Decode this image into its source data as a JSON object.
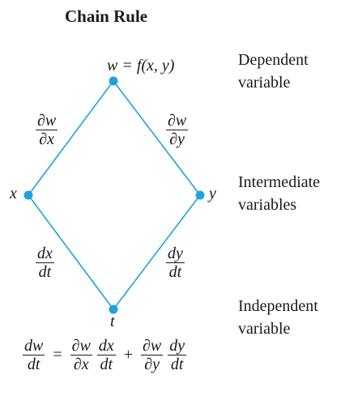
{
  "title": "Chain Rule",
  "nodes": {
    "w": "w = f(x, y)",
    "x": "x",
    "y": "y",
    "t": "t"
  },
  "edges": {
    "dw_dx": {
      "num": "∂w",
      "den": "∂x"
    },
    "dw_dy": {
      "num": "∂w",
      "den": "∂y"
    },
    "dx_dt": {
      "num": "dx",
      "den": "dt"
    },
    "dy_dt": {
      "num": "dy",
      "den": "dt"
    }
  },
  "side_labels": {
    "dependent": [
      "Dependent",
      "variable"
    ],
    "intermediate": [
      "Intermediate",
      "variables"
    ],
    "independent": [
      "Independent",
      "variable"
    ]
  },
  "equation": {
    "lhs": {
      "num": "dw",
      "den": "dt"
    },
    "equals": "=",
    "term1": [
      {
        "num": "∂w",
        "den": "∂x"
      },
      {
        "num": "dx",
        "den": "dt"
      }
    ],
    "plus": "+",
    "term2": [
      {
        "num": "∂w",
        "den": "∂y"
      },
      {
        "num": "dy",
        "den": "dt"
      }
    ]
  },
  "colors": {
    "edge": "#1fa3de",
    "node": "#1fa3de",
    "text": "#1a1a1a"
  }
}
